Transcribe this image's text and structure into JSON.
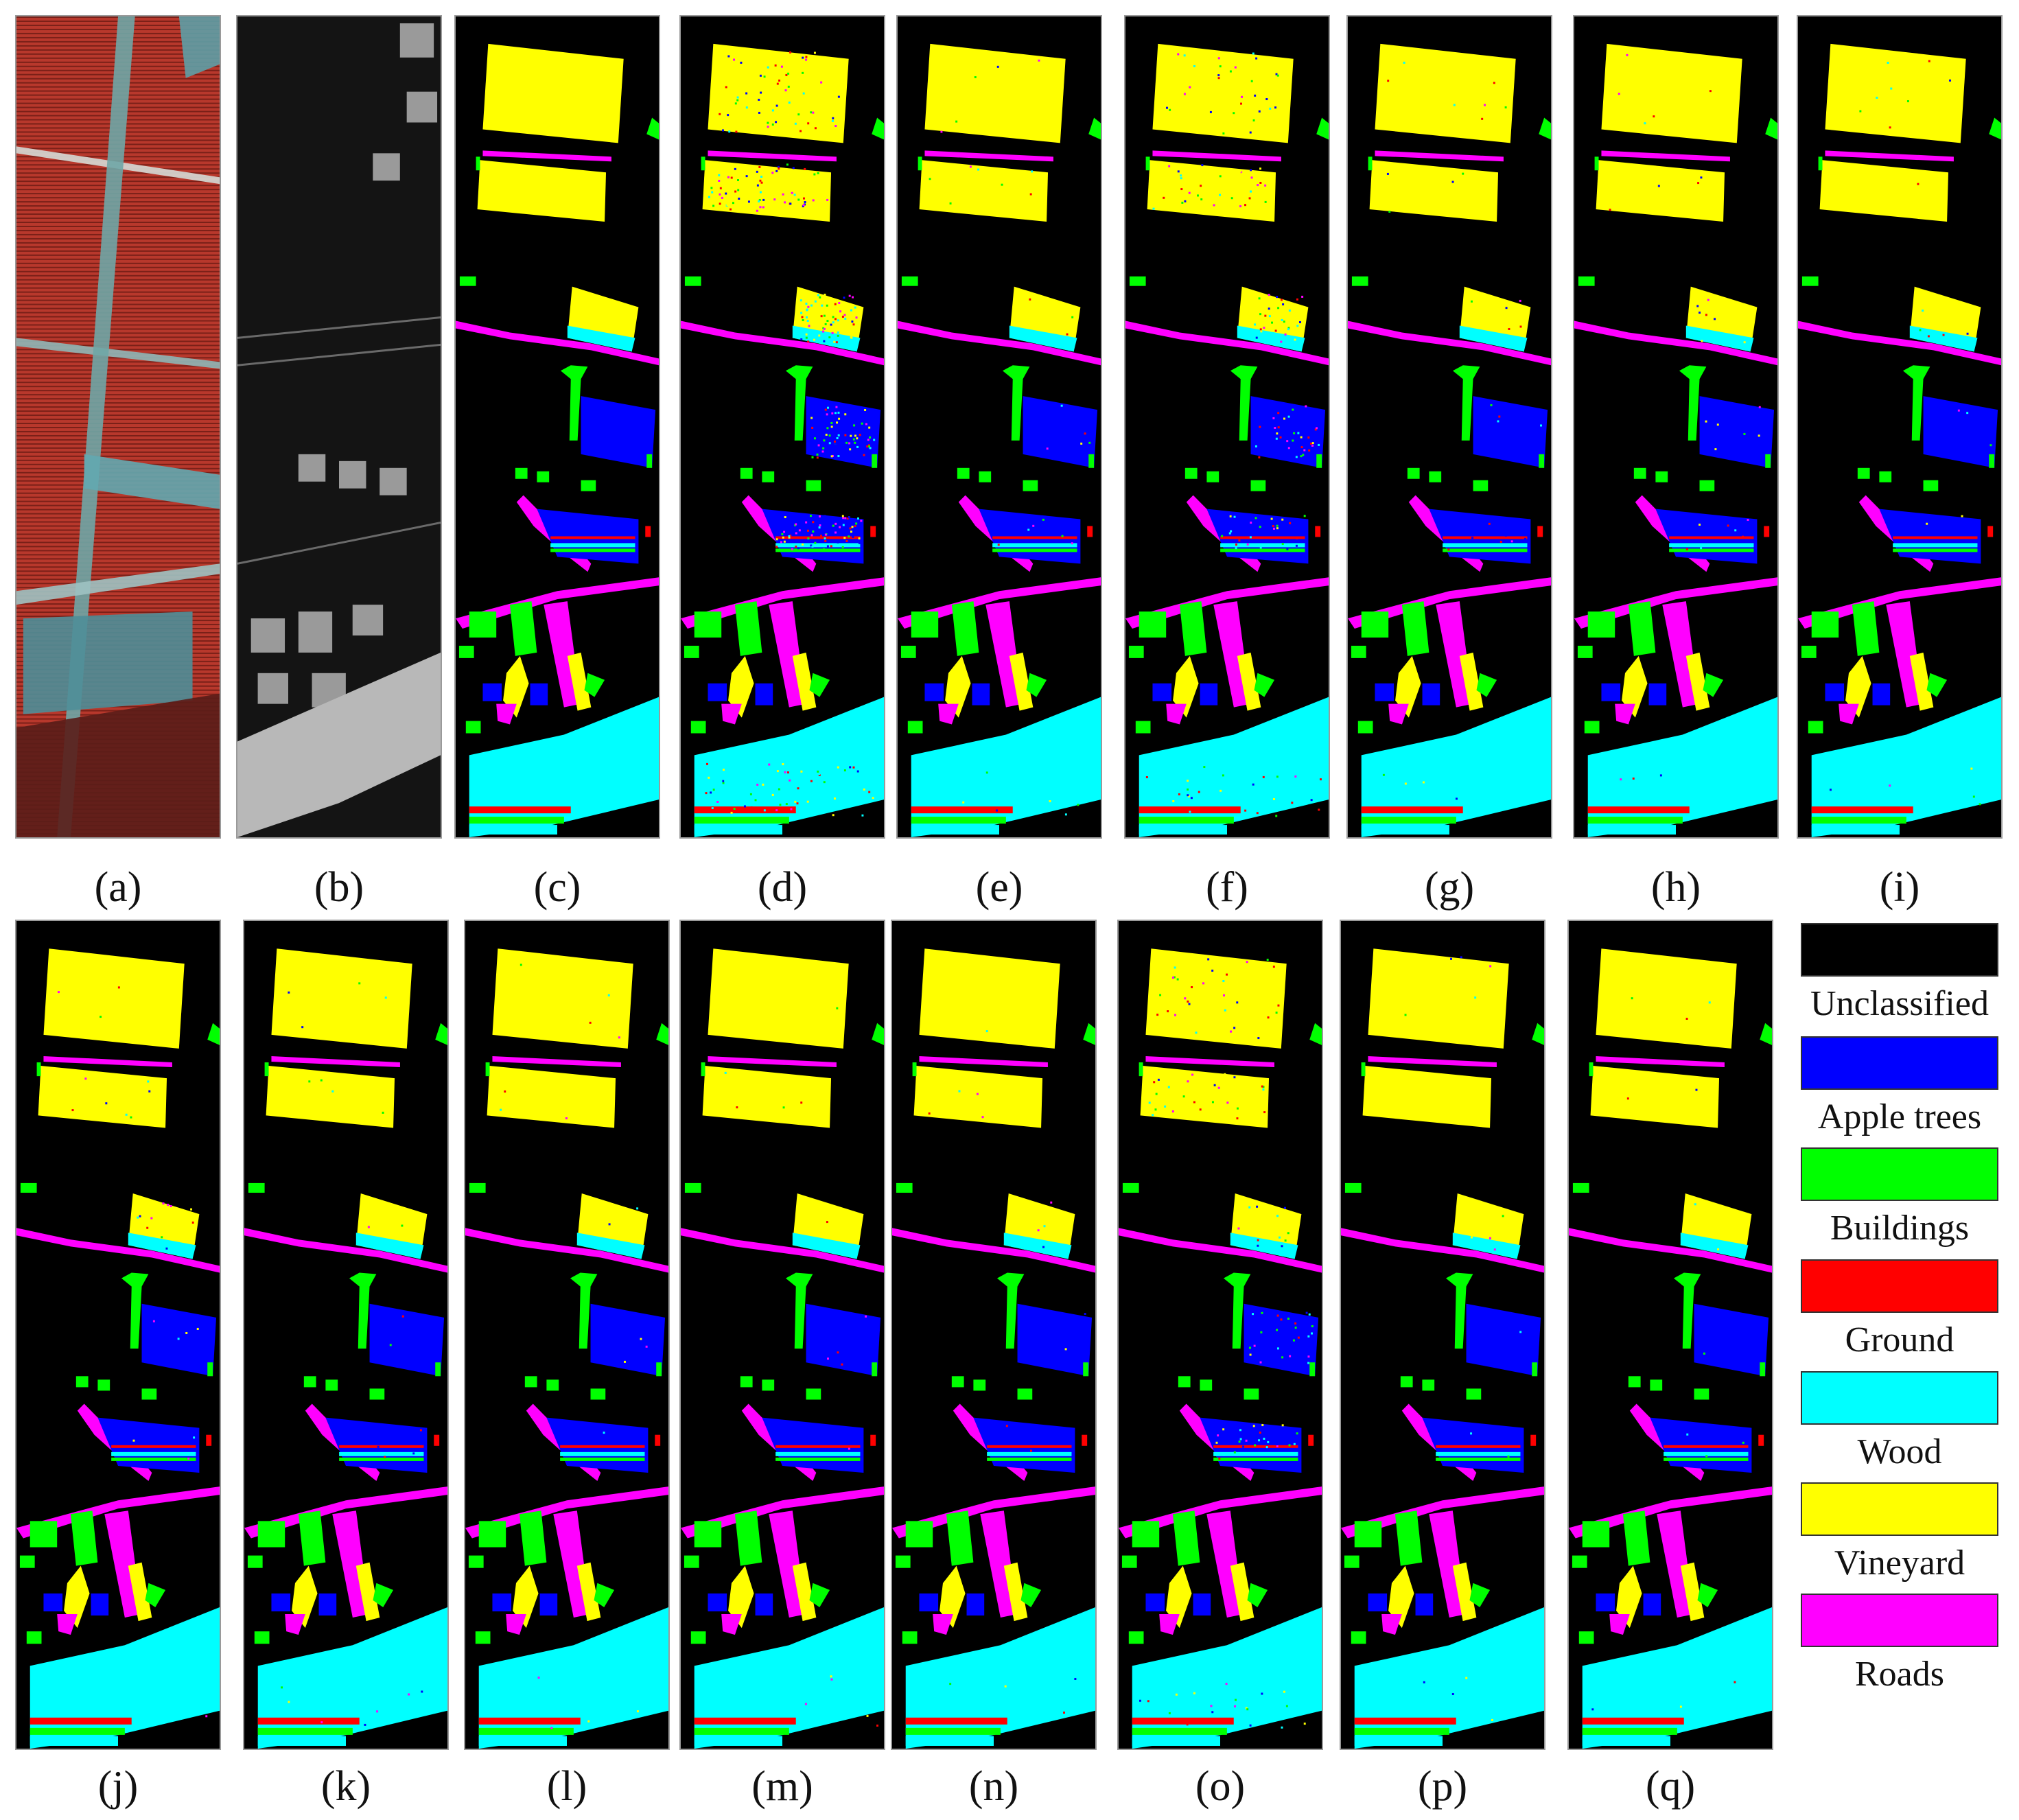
{
  "panels": [
    {
      "id": "a",
      "label": "(a)",
      "kind": "rgb"
    },
    {
      "id": "b",
      "label": "(b)",
      "kind": "lidar"
    },
    {
      "id": "c",
      "label": "(c)",
      "kind": "gt"
    },
    {
      "id": "d",
      "label": "(d)",
      "kind": "map",
      "noise": 0.45
    },
    {
      "id": "e",
      "label": "(e)",
      "kind": "map",
      "noise": 0.04
    },
    {
      "id": "f",
      "label": "(f)",
      "kind": "map",
      "noise": 0.22
    },
    {
      "id": "g",
      "label": "(g)",
      "kind": "map",
      "noise": 0.04
    },
    {
      "id": "h",
      "label": "(h)",
      "kind": "map",
      "noise": 0.04
    },
    {
      "id": "i",
      "label": "(i)",
      "kind": "map",
      "noise": 0.03
    },
    {
      "id": "j",
      "label": "(j)",
      "kind": "map",
      "noise": 0.04
    },
    {
      "id": "k",
      "label": "(k)",
      "kind": "map",
      "noise": 0.03
    },
    {
      "id": "l",
      "label": "(l)",
      "kind": "map",
      "noise": 0.02
    },
    {
      "id": "m",
      "label": "(m)",
      "kind": "map",
      "noise": 0.02
    },
    {
      "id": "n",
      "label": "(n)",
      "kind": "map",
      "noise": 0.02
    },
    {
      "id": "o",
      "label": "(o)",
      "kind": "map",
      "noise": 0.18
    },
    {
      "id": "p",
      "label": "(p)",
      "kind": "map",
      "noise": 0.02
    },
    {
      "id": "q",
      "label": "(q)",
      "kind": "map",
      "noise": 0.02
    }
  ],
  "legend": [
    {
      "label": "Unclassified",
      "color": "#000000"
    },
    {
      "label": "Apple trees",
      "color": "#0000ff"
    },
    {
      "label": "Buildings",
      "color": "#00ff00"
    },
    {
      "label": "Ground",
      "color": "#ff0000"
    },
    {
      "label": "Wood",
      "color": "#00ffff"
    },
    {
      "label": "Vineyard",
      "color": "#ffff00"
    },
    {
      "label": "Roads",
      "color": "#ff00ff"
    }
  ]
}
